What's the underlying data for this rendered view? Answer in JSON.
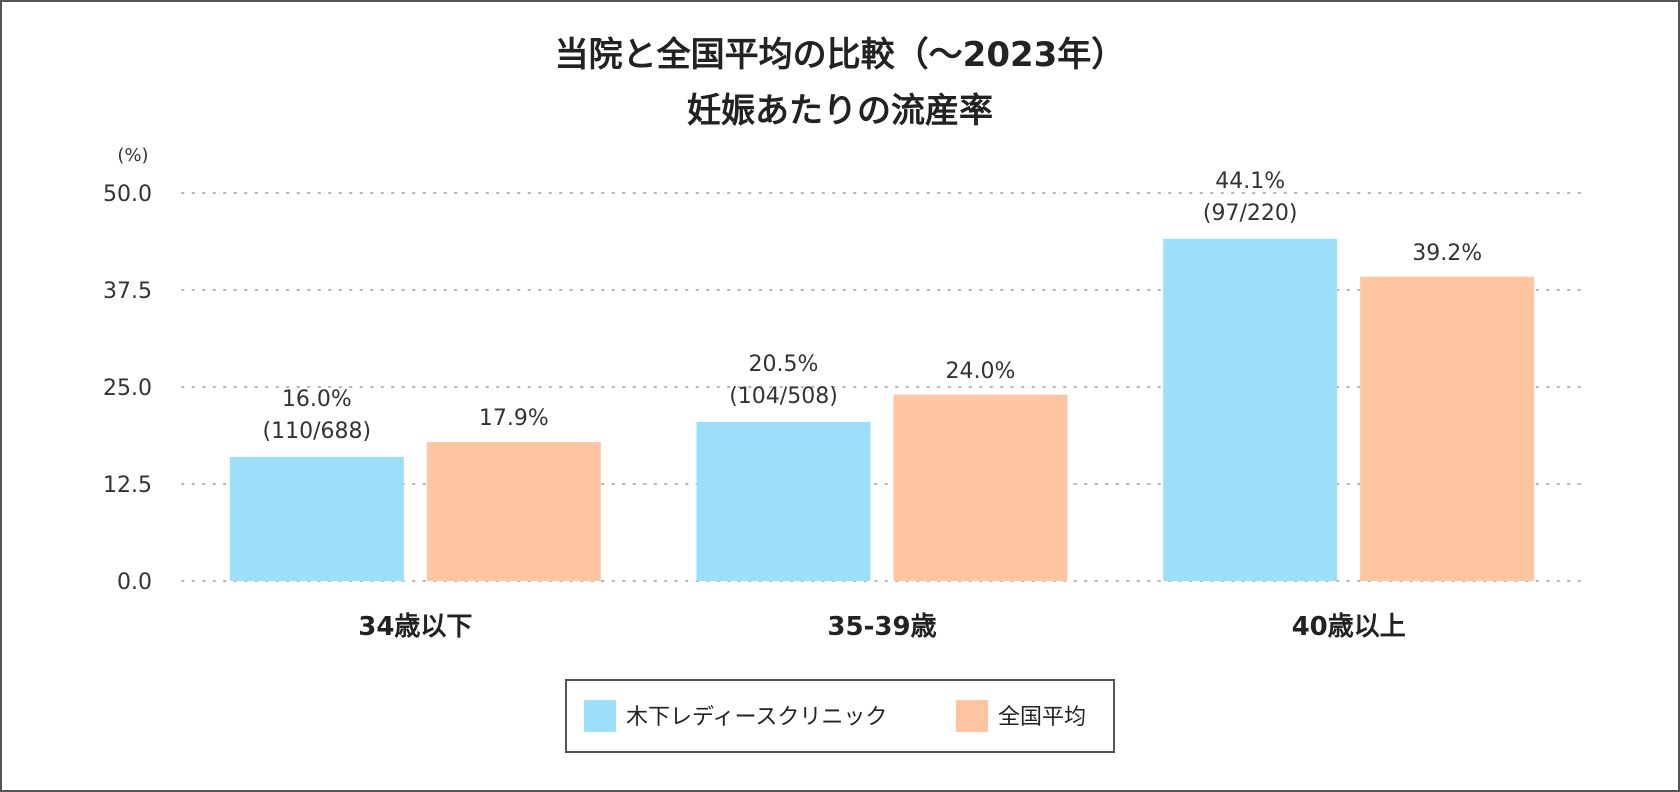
{
  "chart_data": {
    "type": "bar",
    "title": [
      "当院と全国平均の比較（〜2023年）",
      "妊娠あたりの流産率"
    ],
    "ylabel": "(%)",
    "ylim": [
      0,
      50
    ],
    "yticks": [
      "0.0",
      "12.5",
      "25.0",
      "37.5",
      "50.0"
    ],
    "grid": true,
    "categories": [
      "34歳以下",
      "35-39歳",
      "40歳以上"
    ],
    "series": [
      {
        "name": "木下レディースクリニック",
        "color": "#9ddffb",
        "values": [
          16.0,
          20.5,
          44.1
        ],
        "labels": [
          "16.0%",
          "20.5%",
          "44.1%"
        ],
        "sublabels": [
          "(110/688)",
          "(104/508)",
          "(97/220)"
        ]
      },
      {
        "name": "全国平均",
        "color": "#fec5a0",
        "values": [
          17.9,
          24.0,
          39.2
        ],
        "labels": [
          "17.9%",
          "24.0%",
          "39.2%"
        ],
        "sublabels": [
          "",
          "",
          ""
        ]
      }
    ],
    "legend_position": "bottom-center"
  }
}
